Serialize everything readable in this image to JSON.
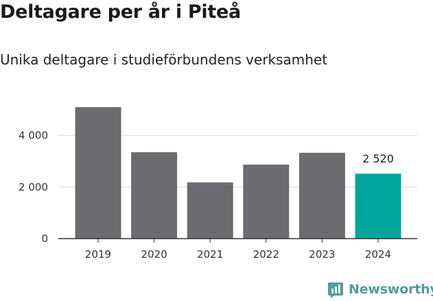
{
  "title": "Deltagare per år i Piteå",
  "subtitle": "Unika deltagare i studieförbundens verksamhet",
  "brand": "Newsworthy",
  "colors": {
    "bar": "#6c6b70",
    "highlight": "#00a69b",
    "grid": "#d9d9d9",
    "axis": "#333333",
    "brand": "#4f9e96"
  },
  "chart_data": {
    "type": "bar",
    "categories": [
      "2019",
      "2020",
      "2021",
      "2022",
      "2023",
      "2024"
    ],
    "values": [
      5100,
      3350,
      2180,
      2870,
      3330,
      2520
    ],
    "highlight_index": 5,
    "data_labels": [
      {
        "index": 5,
        "text": "2 520"
      }
    ],
    "ylim": [
      0,
      5300
    ],
    "yticks": [
      {
        "value": 0,
        "label": "0"
      },
      {
        "value": 2000,
        "label": "2 000"
      },
      {
        "value": 4000,
        "label": "4 000"
      }
    ],
    "grid": true,
    "legend": "none",
    "xlabel": "",
    "ylabel": ""
  }
}
